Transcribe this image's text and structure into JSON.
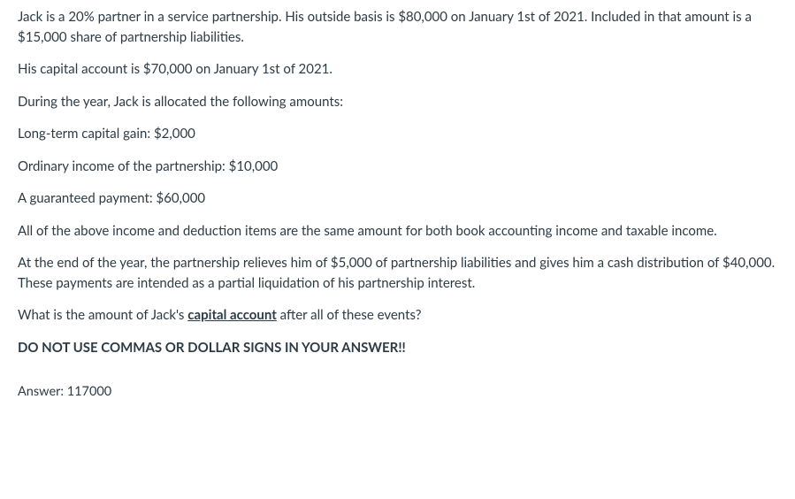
{
  "question": {
    "p1": "Jack is a 20% partner in a service partnership.  His outside basis is $80,000 on January 1st of 2021. Included in that amount is a $15,000 share of partnership liabilities.",
    "p2": "His capital account is $70,000 on January 1st of 2021.",
    "p3": "During the year, Jack is allocated the following amounts:",
    "p4": "Long-term capital gain: $2,000",
    "p5": "Ordinary income of the partnership: $10,000",
    "p6": "A guaranteed payment: $60,000",
    "p7": "All of the above income and deduction items are the same amount for both book accounting income and taxable income.",
    "p8": "At the end of the year, the partnership relieves him of $5,000 of partnership liabilities and gives him a cash distribution of $40,000.  These payments are intended as a partial liquidation of his partnership interest.",
    "p9_before": "What is the amount of Jack's ",
    "p9_underlined": "capital account",
    "p9_after": " after all of these events?",
    "p10": "DO NOT USE COMMAS OR DOLLAR SIGNS IN YOUR ANSWER!!"
  },
  "answer": {
    "label": "Answer:",
    "value": "117000"
  }
}
